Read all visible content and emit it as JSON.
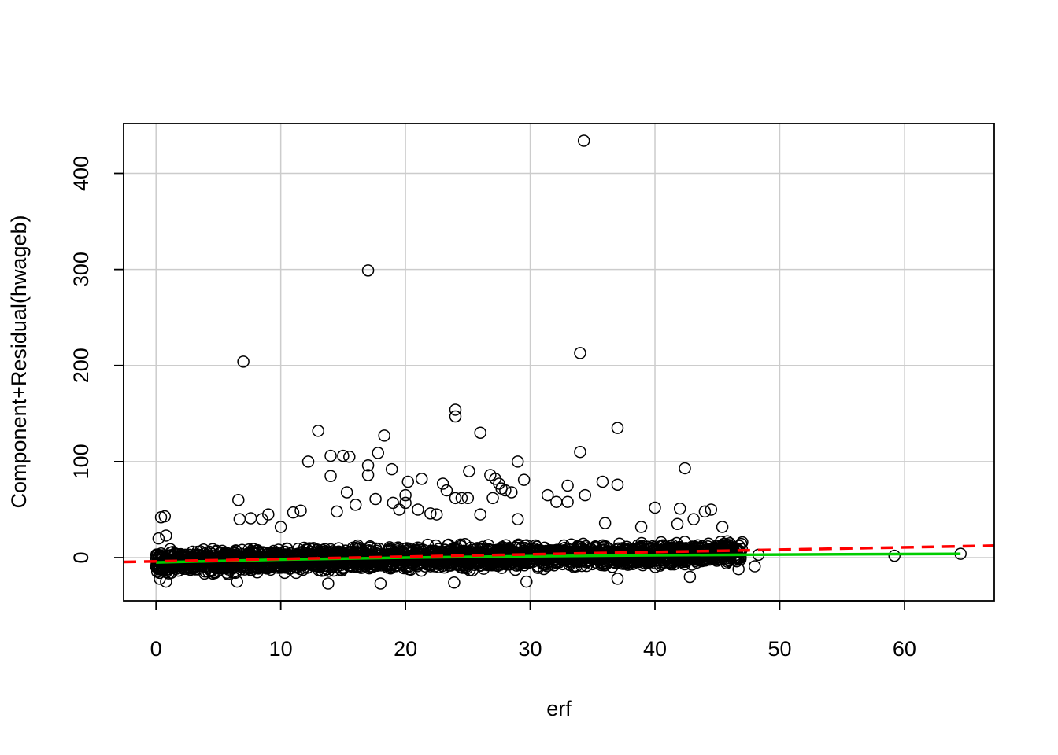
{
  "chart_data": {
    "type": "scatter",
    "title": "",
    "xlabel": "erf",
    "ylabel": "Component+Residual(hwageb)",
    "xlim": [
      -2.6,
      67.2
    ],
    "ylim": [
      -45,
      452
    ],
    "x_ticks": [
      0,
      10,
      20,
      30,
      40,
      50,
      60
    ],
    "y_ticks": [
      0,
      100,
      200,
      300,
      400
    ],
    "grid": true,
    "colors": {
      "points": "#000000",
      "grid": "#cccccc",
      "residual_smooth": "#00cd00",
      "linear_fit": "#ff0000"
    },
    "dense_band": {
      "description_free": true,
      "x_range": [
        0,
        47
      ],
      "y_lower_at_x0": -22,
      "y_upper_at_x0": 12,
      "y_lower_at_x47": -10,
      "y_upper_at_x47": 20
    },
    "outliers": [
      [
        34.3,
        434
      ],
      [
        17.0,
        299
      ],
      [
        7.0,
        204
      ],
      [
        34.0,
        213
      ],
      [
        24.0,
        154
      ],
      [
        24.0,
        147
      ],
      [
        13.0,
        132
      ],
      [
        37.0,
        135
      ],
      [
        26.0,
        130
      ],
      [
        18.3,
        127
      ],
      [
        17.8,
        109
      ],
      [
        34.0,
        110
      ],
      [
        14.0,
        106
      ],
      [
        15.0,
        106
      ],
      [
        15.5,
        105
      ],
      [
        12.2,
        100
      ],
      [
        29.0,
        100
      ],
      [
        42.4,
        93
      ],
      [
        17.0,
        96
      ],
      [
        25.1,
        90
      ],
      [
        18.9,
        92
      ],
      [
        17.0,
        86
      ],
      [
        14.0,
        85
      ],
      [
        26.8,
        86
      ],
      [
        27.2,
        82
      ],
      [
        29.5,
        81
      ],
      [
        20.2,
        79
      ],
      [
        21.3,
        82
      ],
      [
        35.8,
        79
      ],
      [
        23.0,
        77
      ],
      [
        27.5,
        77
      ],
      [
        33.0,
        75
      ],
      [
        37.0,
        76
      ],
      [
        27.7,
        72
      ],
      [
        28.0,
        70
      ],
      [
        28.5,
        68
      ],
      [
        23.3,
        70
      ],
      [
        15.3,
        68
      ],
      [
        34.4,
        65
      ],
      [
        31.4,
        65
      ],
      [
        20.0,
        65
      ],
      [
        24.0,
        62
      ],
      [
        24.5,
        62
      ],
      [
        25.0,
        62
      ],
      [
        27.0,
        62
      ],
      [
        6.6,
        60
      ],
      [
        17.6,
        61
      ],
      [
        32.1,
        58
      ],
      [
        19.0,
        57
      ],
      [
        20.0,
        57
      ],
      [
        33.0,
        58
      ],
      [
        40.0,
        52
      ],
      [
        42.0,
        51
      ],
      [
        16.0,
        55
      ],
      [
        44.5,
        50
      ],
      [
        44.0,
        48
      ],
      [
        14.5,
        48
      ],
      [
        11.0,
        47
      ],
      [
        11.6,
        49
      ],
      [
        19.5,
        50
      ],
      [
        21.0,
        50
      ],
      [
        22.0,
        46
      ],
      [
        22.5,
        45
      ],
      [
        9.0,
        45
      ],
      [
        26.0,
        45
      ],
      [
        0.4,
        42
      ],
      [
        0.7,
        43
      ],
      [
        7.6,
        41
      ],
      [
        6.7,
        40
      ],
      [
        43.1,
        40
      ],
      [
        45.4,
        32
      ],
      [
        29.0,
        40
      ],
      [
        8.5,
        40
      ],
      [
        10.0,
        32
      ],
      [
        41.8,
        35
      ],
      [
        36.0,
        36
      ],
      [
        38.9,
        32
      ],
      [
        0.8,
        23
      ],
      [
        0.2,
        20
      ],
      [
        59.2,
        2
      ],
      [
        64.5,
        4
      ],
      [
        48.3,
        3
      ],
      [
        48.0,
        -9
      ],
      [
        46.7,
        -12
      ],
      [
        47.0,
        16
      ],
      [
        46.0,
        15
      ],
      [
        29.7,
        -25
      ],
      [
        13.8,
        -27
      ],
      [
        18.0,
        -27
      ],
      [
        23.9,
        -26
      ],
      [
        42.8,
        -20
      ],
      [
        37.0,
        -22
      ],
      [
        0.8,
        -25
      ],
      [
        0.3,
        -22
      ],
      [
        6.5,
        -25
      ]
    ],
    "lines": [
      {
        "style": "solid",
        "color": "#00cd00",
        "x": [
          0,
          10,
          20,
          30,
          40,
          47,
          55,
          64.5
        ],
        "y": [
          -5,
          -2,
          0,
          1.5,
          2.5,
          3,
          3.5,
          4
        ]
      },
      {
        "style": "dashed",
        "color": "#ff0000",
        "x": [
          -2.6,
          67.2
        ],
        "y": [
          -4.5,
          12.5
        ]
      }
    ]
  }
}
